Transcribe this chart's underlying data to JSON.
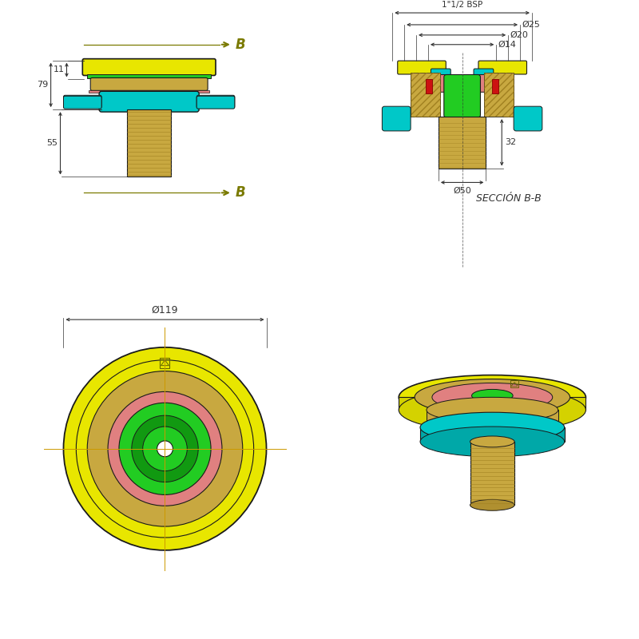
{
  "bg": "#ffffff",
  "lc": "#1a1a1a",
  "dc": "#333333",
  "yellow": "#e8e600",
  "yellow2": "#d4d200",
  "cyan": "#00c8c8",
  "cyan2": "#00a8a8",
  "green": "#22cc22",
  "green2": "#119911",
  "gold": "#c8a840",
  "gold2": "#b09030",
  "gold3": "#a08020",
  "pink": "#e08080",
  "red": "#cc1111",
  "olive": "#7a7a00",
  "blue": "#5599cc",
  "dim_labels": {
    "B_label": "B",
    "dim_11": "11",
    "dim_79": "79",
    "dim_55": "55",
    "dim_BSP": "1\"1/2 BSP",
    "dim_25": "Ø25",
    "dim_20": "Ø20",
    "dim_14": "Ø14",
    "dim_32": "32",
    "dim_50": "Ø50",
    "dim_119": "Ø119",
    "seccion": "SECCIÓN B-B"
  }
}
